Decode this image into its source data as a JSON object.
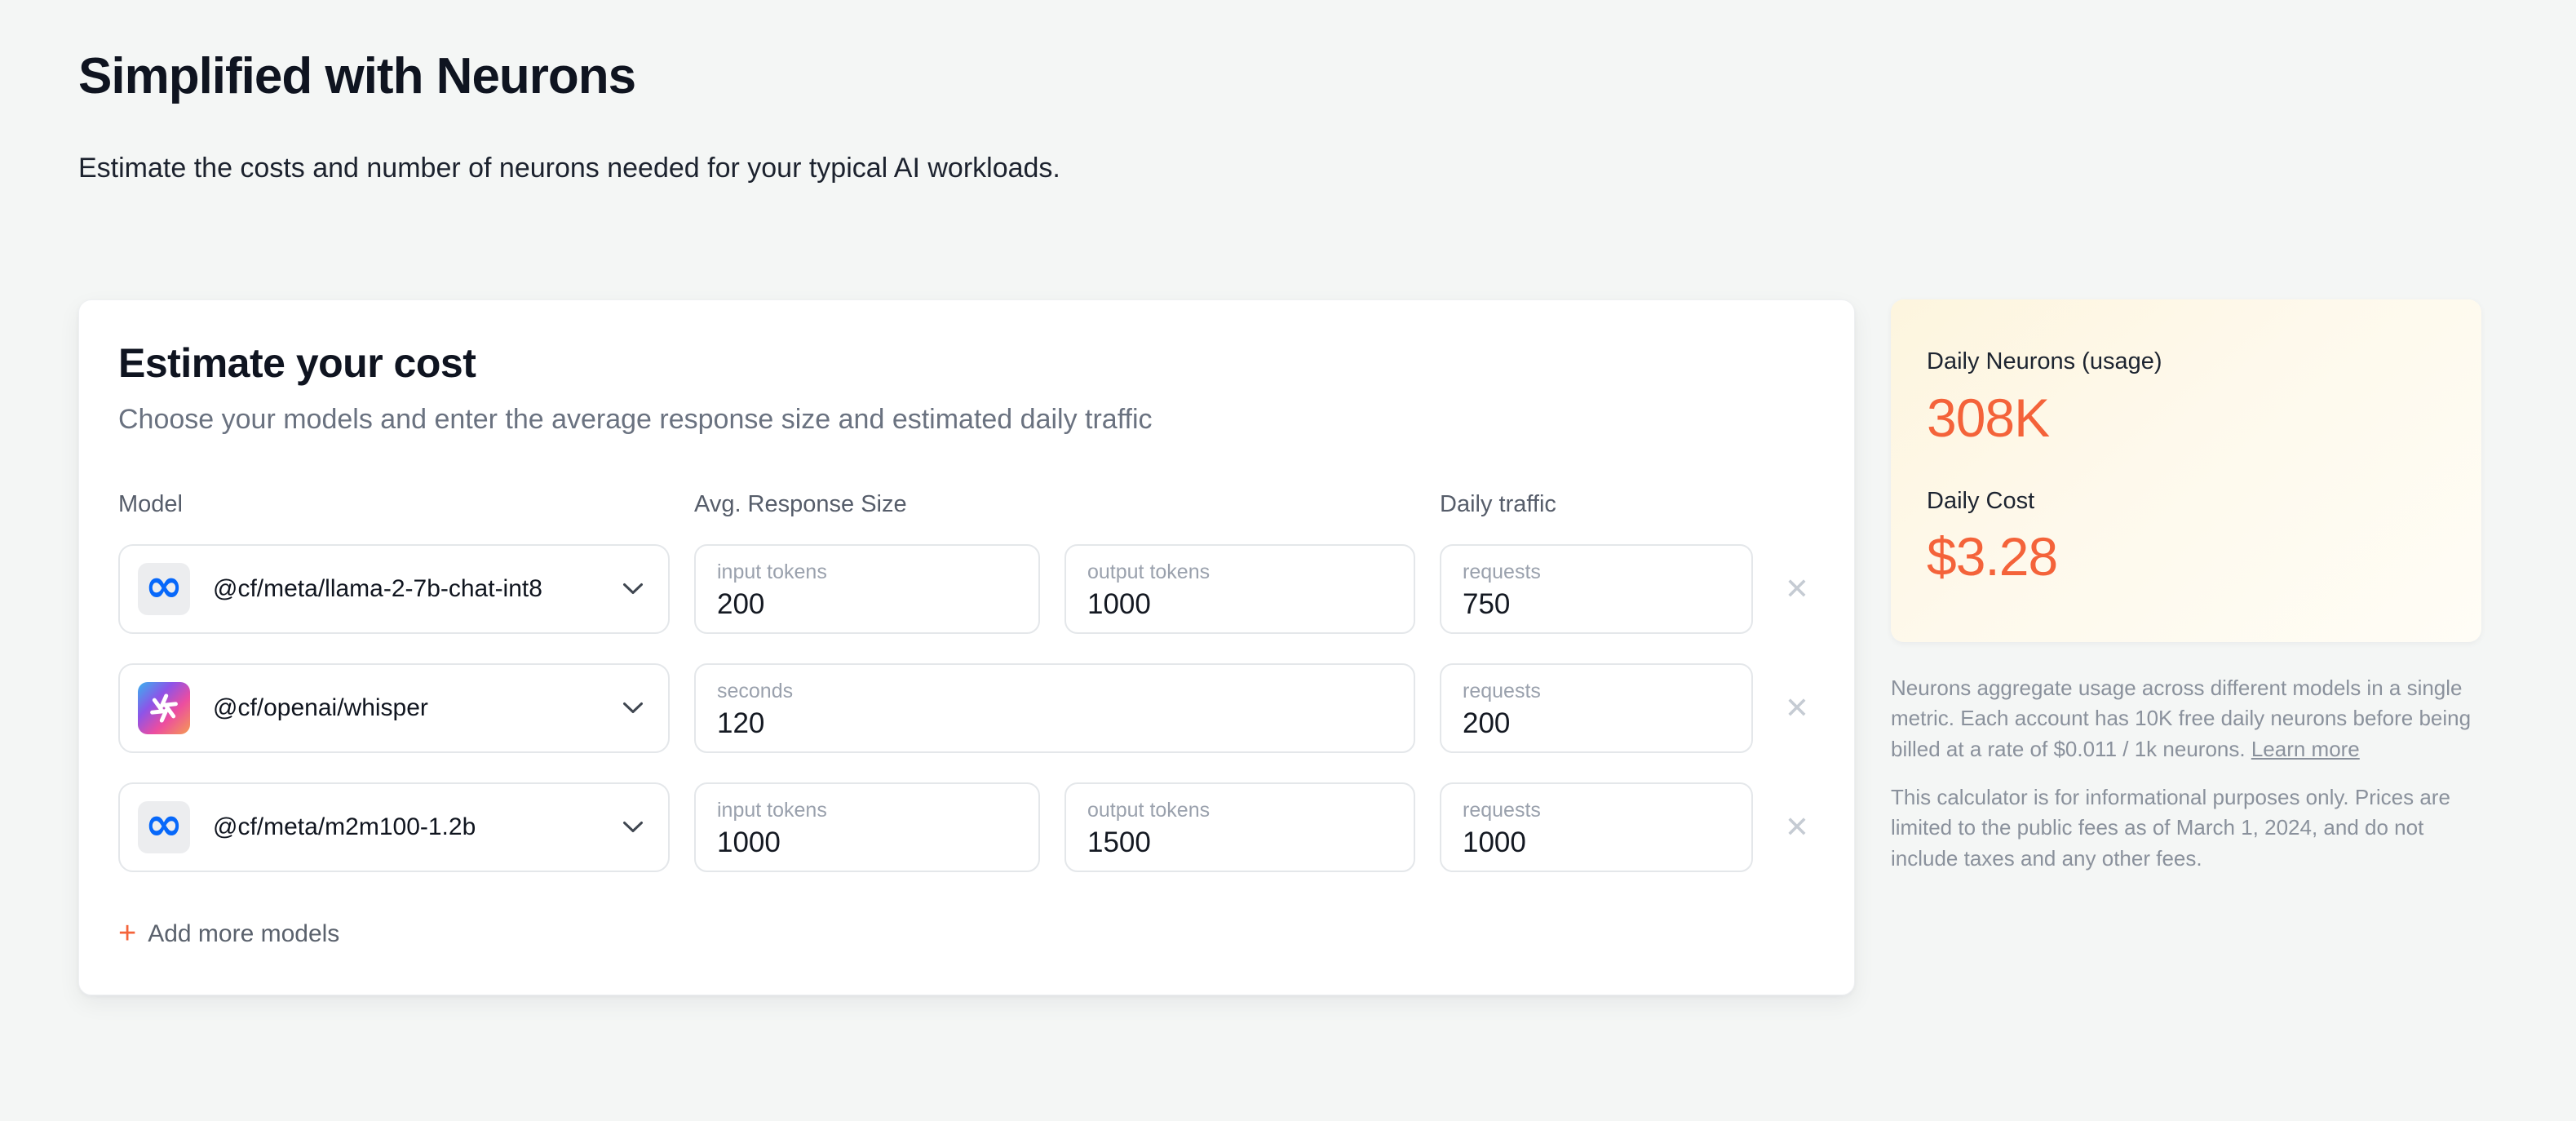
{
  "page": {
    "title": "Simplified with Neurons",
    "subtitle": "Estimate the costs and number of neurons needed for your typical AI workloads."
  },
  "calculator": {
    "title": "Estimate your cost",
    "subtitle": "Choose your models and enter the average response size and estimated daily traffic",
    "columns": {
      "model": "Model",
      "response": "Avg. Response Size",
      "traffic": "Daily traffic"
    },
    "rows": [
      {
        "model": "@cf/meta/llama-2-7b-chat-int8",
        "provider_icon": "meta-icon",
        "fields": [
          {
            "label": "input tokens",
            "value": "200",
            "span": 1
          },
          {
            "label": "output tokens",
            "value": "1000",
            "span": 1
          },
          {
            "label": "requests",
            "value": "750",
            "span": 1
          }
        ]
      },
      {
        "model": "@cf/openai/whisper",
        "provider_icon": "openai-icon",
        "fields": [
          {
            "label": "seconds",
            "value": "120",
            "span": 2
          },
          {
            "label": "requests",
            "value": "200",
            "span": 1
          }
        ]
      },
      {
        "model": "@cf/meta/m2m100-1.2b",
        "provider_icon": "meta-icon",
        "fields": [
          {
            "label": "input tokens",
            "value": "1000",
            "span": 1
          },
          {
            "label": "output tokens",
            "value": "1500",
            "span": 1
          },
          {
            "label": "requests",
            "value": "1000",
            "span": 1
          }
        ]
      }
    ],
    "add_more_plus": "+",
    "add_more_label": "Add more models"
  },
  "summary": {
    "neurons_label": "Daily Neurons (usage)",
    "neurons_value": "308K",
    "cost_label": "Daily Cost",
    "cost_value": "$3.28",
    "note1_text": "Neurons aggregate usage across different models in a single metric. Each account has 10K free daily neurons before being billed at a rate of $0.011 / 1k neurons. ",
    "note1_link": "Learn more",
    "note2": "This calculator is for informational purposes only. Prices are limited to the public fees as of March 1, 2024, and do not include taxes and any other fees."
  },
  "colors": {
    "accent_orange": "#f4633a",
    "page_background": "#f4f6f5",
    "summary_gradient_start": "#fdf5de",
    "summary_gradient_end": "#fffdf6",
    "meta_blue": "#0768fa"
  }
}
